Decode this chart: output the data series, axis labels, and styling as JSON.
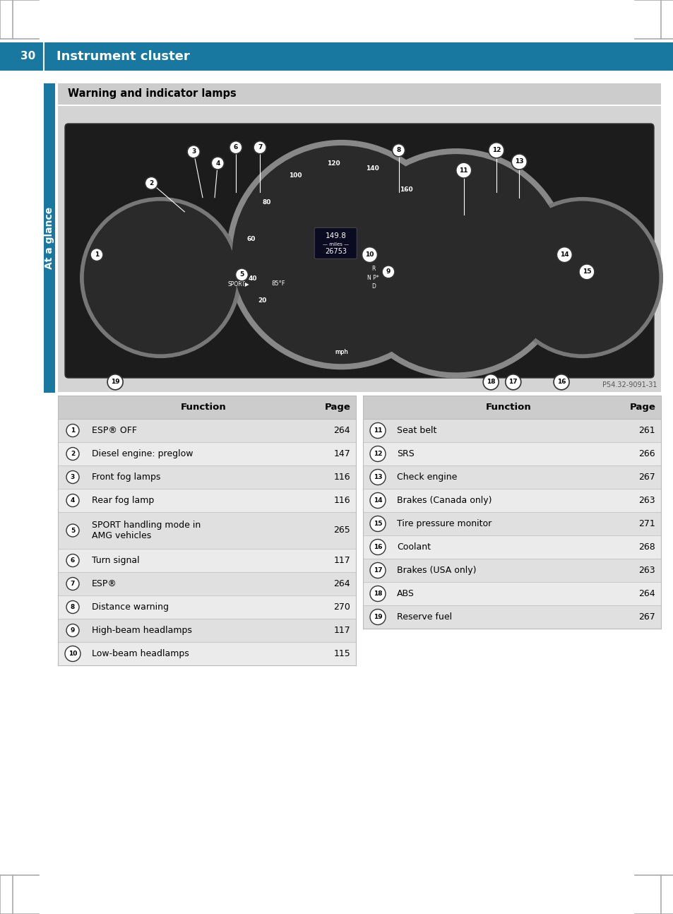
{
  "page_number": "30",
  "header_title": "Instrument cluster",
  "header_bg": "#1878a0",
  "header_text_color": "#ffffff",
  "section_title": "Warning and indicator lamps",
  "section_title_bg": "#cccccc",
  "sidebar_label": "At a glance",
  "sidebar_bg": "#1878a0",
  "image_bg": "#d4d4d4",
  "cluster_bg": "#1a1a1a",
  "table_header_bg": "#cccccc",
  "table_row_bg1": "#e0e0e0",
  "table_row_bg2": "#ebebeb",
  "left_table": {
    "headers": [
      "Function",
      "Page"
    ],
    "rows": [
      [
        "1",
        "ESP® OFF",
        "264"
      ],
      [
        "2",
        "Diesel engine: preglow",
        "147"
      ],
      [
        "3",
        "Front fog lamps",
        "116"
      ],
      [
        "4",
        "Rear fog lamp",
        "116"
      ],
      [
        "5",
        "SPORT handling mode in\nAMG vehicles",
        "265"
      ],
      [
        "6",
        "Turn signal",
        "117"
      ],
      [
        "7",
        "ESP®",
        "264"
      ],
      [
        "8",
        "Distance warning",
        "270"
      ],
      [
        "9",
        "High-beam headlamps",
        "117"
      ],
      [
        "10",
        "Low-beam headlamps",
        "115"
      ]
    ]
  },
  "right_table": {
    "headers": [
      "Function",
      "Page"
    ],
    "rows": [
      [
        "11",
        "Seat belt",
        "261"
      ],
      [
        "12",
        "SRS",
        "266"
      ],
      [
        "13",
        "Check engine",
        "267"
      ],
      [
        "14",
        "Brakes (Canada only)",
        "263"
      ],
      [
        "15",
        "Tire pressure monitor",
        "271"
      ],
      [
        "16",
        "Coolant",
        "268"
      ],
      [
        "17",
        "Brakes (USA only)",
        "263"
      ],
      [
        "18",
        "ABS",
        "264"
      ],
      [
        "19",
        "Reserve fuel",
        "267"
      ]
    ]
  },
  "image_ref": "P54.32-9091-31",
  "bg_color": "#ffffff"
}
